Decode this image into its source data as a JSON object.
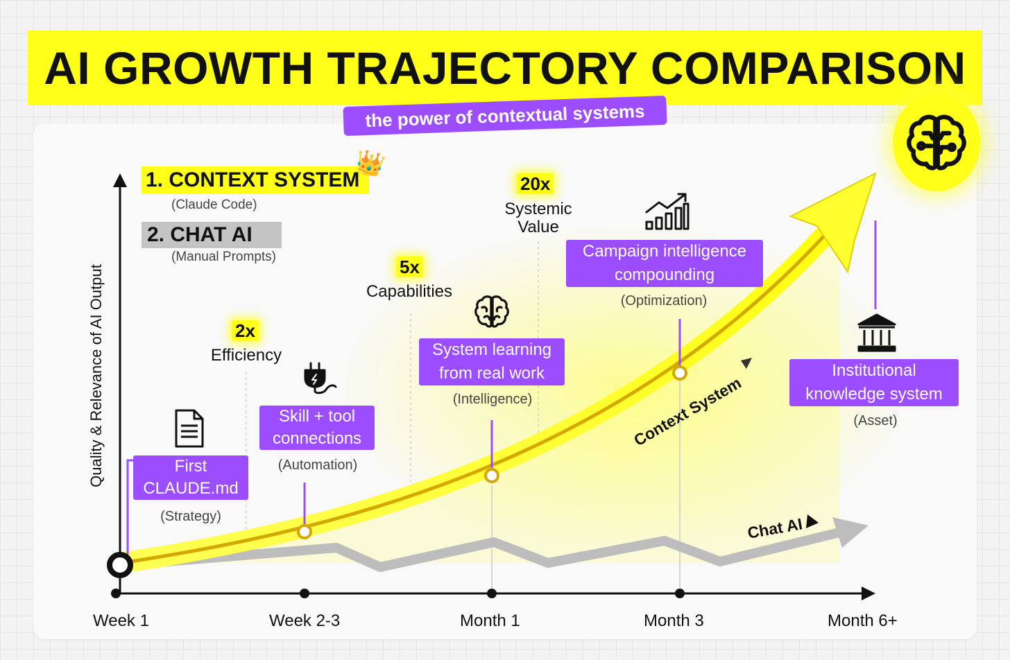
{
  "title": "AI GROWTH TRAJECTORY COMPARISON",
  "subtitle": "the power of contextual systems",
  "legend": {
    "item1": {
      "label": "1. CONTEXT SYSTEM",
      "sub": "(Claude Code)",
      "icon": "crown-icon"
    },
    "item2": {
      "label": "2. CHAT AI",
      "sub": "(Manual Prompts)"
    }
  },
  "y_axis_label": "Quality & Relevance of AI Output",
  "x_ticks": [
    "Week 1",
    "Week 2-3",
    "Month 1",
    "Month 3",
    "Month 6+"
  ],
  "multipliers": [
    {
      "value": "2x",
      "label": "Efficiency"
    },
    {
      "value": "5x",
      "label": "Capabilities"
    },
    {
      "value": "20x",
      "label": "Systemic Value"
    }
  ],
  "milestones": [
    {
      "title": "First CLAUDE.md",
      "category": "(Strategy)",
      "icon": "document-icon"
    },
    {
      "title": "Skill + tool connections",
      "category": "(Automation)",
      "icon": "plug-icon"
    },
    {
      "title": "System learning from real work",
      "category": "(Intelligence)",
      "icon": "brain-icon"
    },
    {
      "title": "Campaign intelligence compounding",
      "category": "(Optimization)",
      "icon": "chart-growth-icon"
    },
    {
      "title": "Institutional knowledge system",
      "category": "(Asset)",
      "icon": "institution-icon"
    }
  ],
  "curve_labels": {
    "context": "Context System",
    "chat": "Chat AI"
  },
  "colors": {
    "accent_yellow": "#ffff1a",
    "accent_purple": "#9b4dff",
    "context_line": "#d4a800",
    "chat_line": "#b8b8b8"
  }
}
